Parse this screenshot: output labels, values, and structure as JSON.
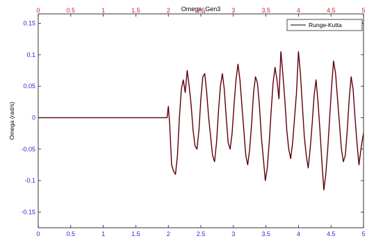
{
  "chart_data": {
    "type": "line",
    "title": "Omega_Gen3",
    "xlabel": "",
    "ylabel": "Omega (rad/s)",
    "xlim": [
      0,
      5
    ],
    "ylim": [
      -0.175,
      0.165
    ],
    "xticks": [
      0,
      0.5,
      1,
      1.5,
      2,
      2.5,
      3,
      3.5,
      4,
      4.5,
      5
    ],
    "xtick_labels": [
      "0",
      "0.5",
      "1",
      "1.5",
      "2",
      "2.5",
      "3",
      "3.5",
      "4",
      "4.5",
      "5"
    ],
    "yticks": [
      -0.15,
      -0.1,
      -0.05,
      0,
      0.05,
      0.1,
      0.15
    ],
    "ytick_labels": [
      "-0.15",
      "-0.1",
      "-0.05",
      "0",
      "0.05",
      "0.1",
      "0.15"
    ],
    "top_axis": true,
    "grid": false,
    "legend_position": "top-right",
    "series": [
      {
        "name": "Runge-Kutta",
        "color": "#000000",
        "x": [
          0,
          1.98,
          2.0,
          2.02,
          2.05,
          2.08,
          2.11,
          2.14,
          2.17,
          2.2,
          2.23,
          2.26,
          2.29,
          2.32,
          2.35,
          2.38,
          2.41,
          2.44,
          2.47,
          2.5,
          2.53,
          2.56,
          2.59,
          2.62,
          2.65,
          2.68,
          2.71,
          2.74,
          2.77,
          2.8,
          2.83,
          2.86,
          2.89,
          2.92,
          2.95,
          2.98,
          3.01,
          3.04,
          3.07,
          3.1,
          3.13,
          3.16,
          3.19,
          3.22,
          3.25,
          3.28,
          3.31,
          3.34,
          3.37,
          3.4,
          3.43,
          3.46,
          3.49,
          3.52,
          3.55,
          3.58,
          3.61,
          3.64,
          3.67,
          3.7,
          3.73,
          3.76,
          3.79,
          3.82,
          3.85,
          3.88,
          3.91,
          3.94,
          3.97,
          4.0,
          4.03,
          4.06,
          4.09,
          4.12,
          4.15,
          4.18,
          4.21,
          4.24,
          4.27,
          4.3,
          4.33,
          4.36,
          4.39,
          4.42,
          4.45,
          4.48,
          4.51,
          4.54,
          4.57,
          4.6,
          4.63,
          4.66,
          4.69,
          4.72,
          4.75,
          4.78,
          4.81,
          4.84,
          4.87,
          4.9,
          4.93,
          4.96,
          4.99,
          5.0
        ],
        "y": [
          0,
          0,
          0.018,
          -0.01,
          -0.075,
          -0.085,
          -0.09,
          -0.06,
          0.0,
          0.045,
          0.06,
          0.04,
          0.075,
          0.05,
          0.02,
          -0.02,
          -0.045,
          -0.05,
          -0.02,
          0.03,
          0.065,
          0.07,
          0.04,
          0.0,
          -0.03,
          -0.06,
          -0.07,
          -0.04,
          0.01,
          0.05,
          0.07,
          0.045,
          0.0,
          -0.04,
          -0.05,
          -0.025,
          0.02,
          0.06,
          0.085,
          0.06,
          0.02,
          -0.02,
          -0.06,
          -0.075,
          -0.05,
          -0.01,
          0.04,
          0.065,
          0.055,
          0.02,
          -0.03,
          -0.065,
          -0.1,
          -0.08,
          -0.04,
          0.01,
          0.055,
          0.08,
          0.06,
          0.03,
          0.105,
          0.07,
          0.03,
          -0.02,
          -0.05,
          -0.065,
          -0.04,
          0.0,
          0.04,
          0.105,
          0.07,
          0.02,
          -0.03,
          -0.06,
          -0.08,
          -0.05,
          -0.01,
          0.035,
          0.06,
          0.025,
          -0.02,
          -0.07,
          -0.115,
          -0.09,
          -0.05,
          0.0,
          0.05,
          0.09,
          0.07,
          0.03,
          -0.01,
          -0.05,
          -0.07,
          -0.06,
          -0.02,
          0.03,
          0.065,
          0.045,
          0.0,
          -0.04,
          -0.075,
          -0.05,
          -0.03,
          -0.025
        ]
      }
    ]
  }
}
